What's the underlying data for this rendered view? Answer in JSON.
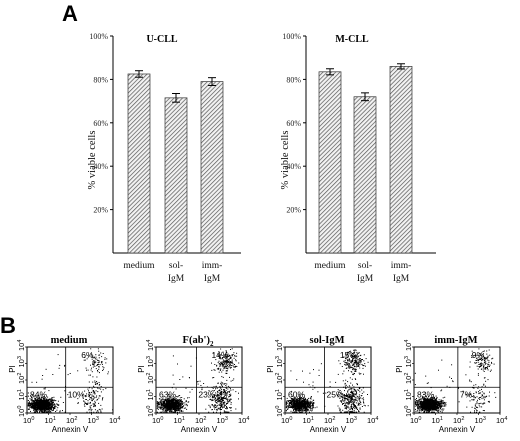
{
  "panel_a_label": "A",
  "panel_b_label": "B",
  "chart_data": [
    {
      "type": "bar",
      "title": "U-CLL",
      "ylabel": "% viable cells",
      "categories": [
        [
          "medium"
        ],
        [
          "sol-",
          "IgM"
        ],
        [
          "imm-",
          "IgM"
        ]
      ],
      "values": [
        82.5,
        71.5,
        79
      ],
      "errors": [
        1.5,
        2,
        1.8
      ],
      "ylim": [
        0,
        100
      ],
      "yticks": [
        "20%",
        "40%",
        "60%",
        "80%",
        "100%"
      ],
      "grid": false
    },
    {
      "type": "bar",
      "title": "M-CLL",
      "ylabel": "% viable cells",
      "categories": [
        [
          "medium"
        ],
        [
          "sol-",
          "IgM"
        ],
        [
          "imm-",
          "IgM"
        ]
      ],
      "values": [
        83.5,
        72,
        86
      ],
      "errors": [
        1.4,
        1.8,
        1.2
      ],
      "ylim": [
        0,
        100
      ],
      "yticks": [
        "20%",
        "40%",
        "60%",
        "80%",
        "100%"
      ],
      "grid": false
    },
    {
      "type": "scatter",
      "title": "medium",
      "xlabel": "Annexin V",
      "ylabel": "PI",
      "axis_scale": "log",
      "tick_base": "10",
      "tick_exponents": [
        "0",
        "1",
        "2",
        "3",
        "4"
      ],
      "quadrants": {
        "lower_left": "84%",
        "lower_right": "10%",
        "upper_right": "6%"
      }
    },
    {
      "type": "scatter",
      "title_main": "F(ab')",
      "title_sub": "2",
      "xlabel": "Annexin V",
      "ylabel": "PI",
      "axis_scale": "log",
      "tick_base": "10",
      "tick_exponents": [
        "0",
        "1",
        "2",
        "3",
        "4"
      ],
      "quadrants": {
        "lower_left": "63%",
        "lower_right": "23%",
        "upper_right": "14%"
      }
    },
    {
      "type": "scatter",
      "title": "sol-IgM",
      "xlabel": "Annexin V",
      "ylabel": "PI",
      "axis_scale": "log",
      "tick_base": "10",
      "tick_exponents": [
        "0",
        "1",
        "2",
        "3",
        "4"
      ],
      "quadrants": {
        "lower_left": "60%",
        "lower_right": "25%",
        "upper_right": "15%"
      }
    },
    {
      "type": "scatter",
      "title": "imm-IgM",
      "xlabel": "Annexin V",
      "ylabel": "PI",
      "axis_scale": "log",
      "tick_base": "10",
      "tick_exponents": [
        "0",
        "1",
        "2",
        "3",
        "4"
      ],
      "quadrants": {
        "lower_left": "83%",
        "lower_right": "7%",
        "upper_right": "9%"
      }
    }
  ]
}
